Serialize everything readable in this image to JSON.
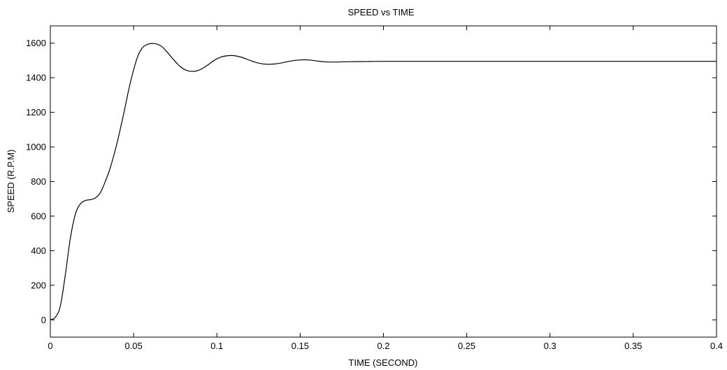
{
  "chart_data": {
    "type": "line",
    "title": "SPEED vs TIME",
    "xlabel": "TIME (SECOND)",
    "ylabel": "SPEED (R.P.M)",
    "xlim": [
      0,
      0.4
    ],
    "ylim": [
      -100,
      1700
    ],
    "xticks": [
      0,
      0.05,
      0.1,
      0.15,
      0.2,
      0.25,
      0.3,
      0.35,
      0.4
    ],
    "xtick_labels": [
      "0",
      "0.05",
      "0.1",
      "0.15",
      "0.2",
      "0.25",
      "0.3",
      "0.35",
      "0.4"
    ],
    "yticks": [
      0,
      200,
      400,
      600,
      800,
      1000,
      1200,
      1400,
      1600
    ],
    "ytick_labels": [
      "0",
      "200",
      "400",
      "600",
      "800",
      "1000",
      "1200",
      "1400",
      "1600"
    ],
    "grid": false,
    "line_color": "#000000",
    "series": [
      {
        "x": [
          0,
          0.003,
          0.006,
          0.009,
          0.012,
          0.015,
          0.018,
          0.021,
          0.024,
          0.027,
          0.03,
          0.033,
          0.036,
          0.04,
          0.044,
          0.048,
          0.052,
          0.055,
          0.058,
          0.061,
          0.064,
          0.067,
          0.07,
          0.074,
          0.078,
          0.082,
          0.086,
          0.09,
          0.094,
          0.098,
          0.102,
          0.106,
          0.11,
          0.115,
          0.12,
          0.125,
          0.13,
          0.135,
          0.14,
          0.145,
          0.15,
          0.155,
          0.16,
          0.165,
          0.17,
          0.18,
          0.19,
          0.2,
          0.25,
          0.3,
          0.35,
          0.4
        ],
        "y": [
          0,
          15,
          80,
          260,
          470,
          610,
          670,
          690,
          695,
          705,
          735,
          800,
          880,
          1020,
          1190,
          1370,
          1510,
          1570,
          1592,
          1598,
          1595,
          1580,
          1550,
          1505,
          1465,
          1442,
          1437,
          1447,
          1470,
          1498,
          1518,
          1527,
          1528,
          1518,
          1500,
          1485,
          1478,
          1480,
          1488,
          1498,
          1503,
          1503,
          1497,
          1492,
          1491,
          1493,
          1494,
          1495,
          1495,
          1495,
          1495,
          1495
        ]
      }
    ]
  }
}
